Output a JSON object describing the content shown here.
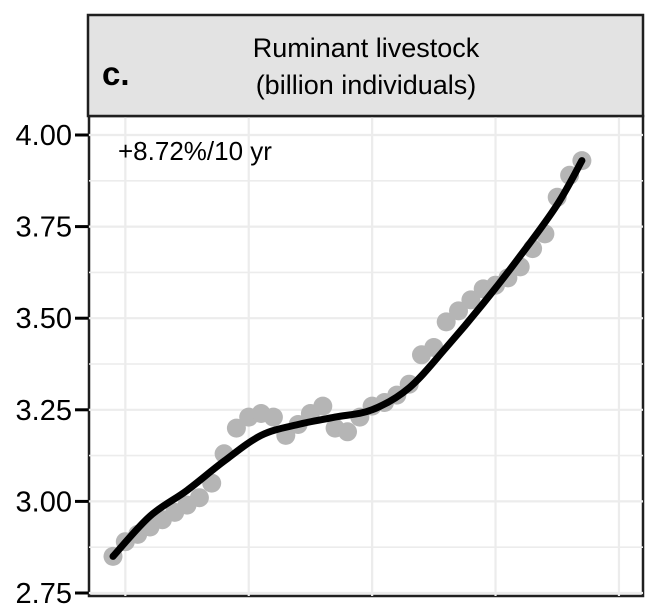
{
  "panel": {
    "letter": "c.",
    "title_line1": "Ruminant livestock",
    "title_line2": "(billion individuals)",
    "annotation": "+8.72%/10 yr"
  },
  "y_axis": {
    "tick_labels": [
      "4.00",
      "3.75",
      "3.50",
      "3.25",
      "3.00",
      "2.75"
    ],
    "tick_values": [
      4.0,
      3.75,
      3.5,
      3.25,
      3.0,
      2.75
    ],
    "minor_gridline_values": [
      3.875,
      3.625,
      3.375,
      3.125,
      2.875
    ]
  },
  "colors": {
    "background": "#ffffff",
    "header_fill": "#e3e3e3",
    "panel_border": "#1f1f1f",
    "gridline": "#ececec",
    "point": "#b5b5b5",
    "trend_line": "#000000",
    "text": "#000000"
  },
  "chart_data": {
    "type": "scatter",
    "title": "Ruminant livestock",
    "subtitle": "(billion individuals)",
    "panel_label": "c.",
    "annotation": "+8.72%/10 yr",
    "ylabel": "billion individuals",
    "ylim": [
      2.74,
      4.04
    ],
    "y_ticks": [
      2.75,
      3.0,
      3.25,
      3.5,
      3.75,
      4.0
    ],
    "grid": true,
    "legend": false,
    "x_axis": {
      "tick_labels_visible": false,
      "gridline_years_estimated": [
        1980,
        1990,
        2000,
        2010,
        2020
      ],
      "estimated_range": [
        1979,
        2017
      ]
    },
    "x_years": [
      1979,
      1980,
      1981,
      1982,
      1983,
      1984,
      1985,
      1986,
      1987,
      1988,
      1989,
      1990,
      1991,
      1992,
      1993,
      1994,
      1995,
      1996,
      1997,
      1998,
      1999,
      2000,
      2001,
      2002,
      2003,
      2004,
      2005,
      2006,
      2007,
      2008,
      2009,
      2010,
      2011,
      2012,
      2013,
      2014,
      2015,
      2016,
      2017
    ],
    "values": [
      2.85,
      2.89,
      2.91,
      2.93,
      2.95,
      2.97,
      2.99,
      3.01,
      3.05,
      3.13,
      3.2,
      3.23,
      3.24,
      3.23,
      3.18,
      3.21,
      3.24,
      3.26,
      3.2,
      3.19,
      3.23,
      3.26,
      3.27,
      3.29,
      3.32,
      3.4,
      3.42,
      3.49,
      3.52,
      3.55,
      3.58,
      3.59,
      3.61,
      3.64,
      3.69,
      3.73,
      3.83,
      3.89,
      3.93
    ],
    "trend_line": {
      "x_years": [
        1979,
        1982,
        1985,
        1988,
        1991,
        1994,
        1997,
        2000,
        2003,
        2006,
        2009,
        2012,
        2015,
        2017
      ],
      "values": [
        2.85,
        2.96,
        3.03,
        3.11,
        3.18,
        3.21,
        3.23,
        3.25,
        3.31,
        3.42,
        3.54,
        3.67,
        3.81,
        3.93
      ]
    }
  }
}
